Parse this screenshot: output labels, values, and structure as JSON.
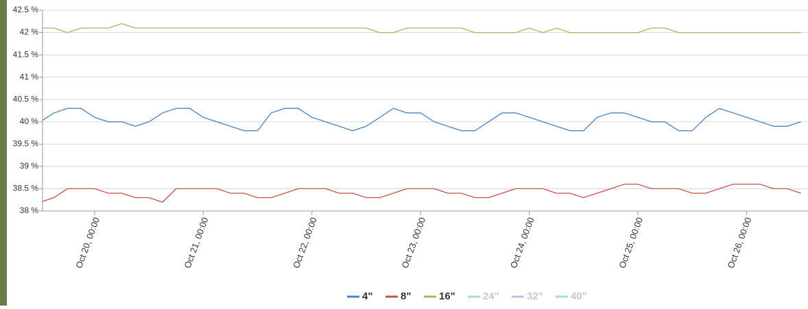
{
  "chart_data": {
    "type": "line",
    "x": [
      "Oct 19, 12:00",
      "Oct 19, 15:00",
      "Oct 19, 18:00",
      "Oct 19, 21:00",
      "Oct 20, 00:00",
      "Oct 20, 03:00",
      "Oct 20, 06:00",
      "Oct 20, 09:00",
      "Oct 20, 12:00",
      "Oct 20, 15:00",
      "Oct 20, 18:00",
      "Oct 20, 21:00",
      "Oct 21, 00:00",
      "Oct 21, 03:00",
      "Oct 21, 06:00",
      "Oct 21, 09:00",
      "Oct 21, 12:00",
      "Oct 21, 15:00",
      "Oct 21, 18:00",
      "Oct 21, 21:00",
      "Oct 22, 00:00",
      "Oct 22, 03:00",
      "Oct 22, 06:00",
      "Oct 22, 09:00",
      "Oct 22, 12:00",
      "Oct 22, 15:00",
      "Oct 22, 18:00",
      "Oct 22, 21:00",
      "Oct 23, 00:00",
      "Oct 23, 03:00",
      "Oct 23, 06:00",
      "Oct 23, 09:00",
      "Oct 23, 12:00",
      "Oct 23, 15:00",
      "Oct 23, 18:00",
      "Oct 23, 21:00",
      "Oct 24, 00:00",
      "Oct 24, 03:00",
      "Oct 24, 06:00",
      "Oct 24, 09:00",
      "Oct 24, 12:00",
      "Oct 24, 15:00",
      "Oct 24, 18:00",
      "Oct 24, 21:00",
      "Oct 25, 00:00",
      "Oct 25, 03:00",
      "Oct 25, 06:00",
      "Oct 25, 09:00",
      "Oct 25, 12:00",
      "Oct 25, 15:00",
      "Oct 25, 18:00",
      "Oct 25, 21:00",
      "Oct 26, 00:00",
      "Oct 26, 03:00",
      "Oct 26, 06:00",
      "Oct 26, 09:00",
      "Oct 26, 12:00"
    ],
    "xticks": [
      "Oct 20, 00:00",
      "Oct 21, 00:00",
      "Oct 22, 00:00",
      "Oct 23, 00:00",
      "Oct 24, 00:00",
      "Oct 25, 00:00",
      "Oct 26, 00:00"
    ],
    "ylim": [
      38,
      42.5
    ],
    "yticks": [
      {
        "value": 38,
        "label": "38 %"
      },
      {
        "value": 38.5,
        "label": "38.5 %"
      },
      {
        "value": 39,
        "label": "39 %"
      },
      {
        "value": 39.5,
        "label": "39.5 %"
      },
      {
        "value": 40,
        "label": "40 %"
      },
      {
        "value": 40.5,
        "label": "40.5 %"
      },
      {
        "value": 41,
        "label": "41 %"
      },
      {
        "value": 41.5,
        "label": "41.5 %"
      },
      {
        "value": 42,
        "label": "42 %"
      },
      {
        "value": 42.5,
        "label": "42.5 %"
      }
    ],
    "grid": true,
    "legend": "bottom",
    "series": [
      {
        "name": "4\"",
        "color": "#4f81bd",
        "visible": true,
        "values": [
          40.0,
          40.2,
          40.3,
          40.3,
          40.1,
          40.0,
          40.0,
          39.9,
          40.0,
          40.2,
          40.3,
          40.3,
          40.1,
          40.0,
          39.9,
          39.8,
          39.8,
          40.2,
          40.3,
          40.3,
          40.1,
          40.0,
          39.9,
          39.8,
          39.9,
          40.1,
          40.3,
          40.2,
          40.2,
          40.0,
          39.9,
          39.8,
          39.8,
          40.0,
          40.2,
          40.2,
          40.1,
          40.0,
          39.9,
          39.8,
          39.8,
          40.1,
          40.2,
          40.2,
          40.1,
          40.0,
          40.0,
          39.8,
          39.8,
          40.1,
          40.3,
          40.2,
          40.1,
          40.0,
          39.9,
          39.9,
          40.0
        ]
      },
      {
        "name": "8\"",
        "color": "#c0504d",
        "visible": true,
        "values": [
          38.2,
          38.3,
          38.5,
          38.5,
          38.5,
          38.4,
          38.4,
          38.3,
          38.3,
          38.2,
          38.5,
          38.5,
          38.5,
          38.5,
          38.4,
          38.4,
          38.3,
          38.3,
          38.4,
          38.5,
          38.5,
          38.5,
          38.4,
          38.4,
          38.3,
          38.3,
          38.4,
          38.5,
          38.5,
          38.5,
          38.4,
          38.4,
          38.3,
          38.3,
          38.4,
          38.5,
          38.5,
          38.5,
          38.4,
          38.4,
          38.3,
          38.4,
          38.5,
          38.6,
          38.6,
          38.5,
          38.5,
          38.5,
          38.4,
          38.4,
          38.5,
          38.6,
          38.6,
          38.6,
          38.5,
          38.5,
          38.4
        ]
      },
      {
        "name": "16\"",
        "color": "#9bbb59",
        "visible": true,
        "values": [
          42.1,
          42.1,
          42.0,
          42.1,
          42.1,
          42.1,
          42.2,
          42.1,
          42.1,
          42.1,
          42.1,
          42.1,
          42.1,
          42.1,
          42.1,
          42.1,
          42.1,
          42.1,
          42.1,
          42.1,
          42.1,
          42.1,
          42.1,
          42.1,
          42.1,
          42.0,
          42.0,
          42.1,
          42.1,
          42.1,
          42.1,
          42.1,
          42.0,
          42.0,
          42.0,
          42.0,
          42.1,
          42.0,
          42.1,
          42.0,
          42.0,
          42.0,
          42.0,
          42.0,
          42.0,
          42.1,
          42.1,
          42.0,
          42.0,
          42.0,
          42.0,
          42.0,
          42.0,
          42.0,
          42.0,
          42.0,
          42.0
        ]
      },
      {
        "name": "24\"",
        "color": "#a3dede",
        "visible": false,
        "values": [
          null,
          null,
          null,
          null,
          null,
          null,
          null,
          null,
          null,
          null,
          null,
          null,
          null,
          null,
          null,
          null,
          null,
          null,
          null,
          null,
          null,
          null,
          null,
          null,
          null,
          null,
          null,
          null,
          null,
          null,
          null,
          null,
          null,
          null,
          null,
          null,
          null,
          null,
          null,
          null,
          null,
          null,
          null,
          null,
          null,
          null,
          null,
          null,
          null,
          null,
          null,
          null,
          null,
          null,
          null,
          null,
          null
        ]
      },
      {
        "name": "32\"",
        "color": "#cbbbe0",
        "visible": false,
        "values": [
          null,
          null,
          null,
          null,
          null,
          null,
          null,
          null,
          null,
          null,
          null,
          null,
          null,
          null,
          null,
          null,
          null,
          null,
          null,
          null,
          null,
          null,
          null,
          null,
          null,
          null,
          null,
          null,
          null,
          null,
          null,
          null,
          null,
          null,
          null,
          null,
          null,
          null,
          null,
          null,
          null,
          null,
          null,
          null,
          null,
          null,
          null,
          null,
          null,
          null,
          null,
          null,
          null,
          null,
          null,
          null,
          null
        ]
      },
      {
        "name": "40\"",
        "color": "#a6d9ea",
        "visible": false,
        "values": [
          null,
          null,
          null,
          null,
          null,
          null,
          null,
          null,
          null,
          null,
          null,
          null,
          null,
          null,
          null,
          null,
          null,
          null,
          null,
          null,
          null,
          null,
          null,
          null,
          null,
          null,
          null,
          null,
          null,
          null,
          null,
          null,
          null,
          null,
          null,
          null,
          null,
          null,
          null,
          null,
          null,
          null,
          null,
          null,
          null,
          null,
          null,
          null,
          null,
          null,
          null,
          null,
          null,
          null,
          null,
          null,
          null
        ]
      }
    ]
  }
}
